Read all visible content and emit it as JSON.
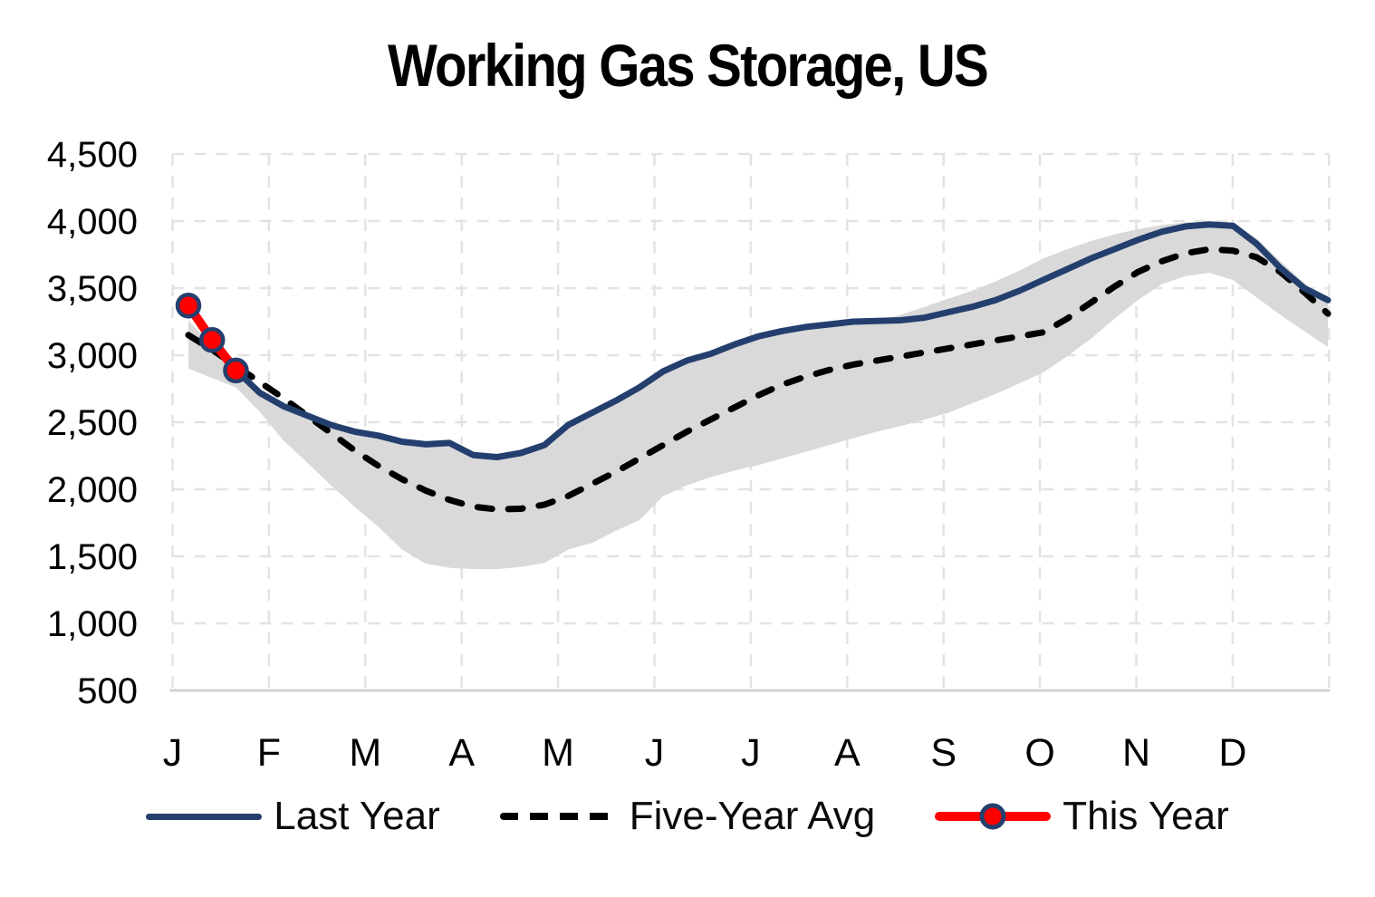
{
  "title": "Working Gas Storage, US",
  "y_axis": {
    "ticks": [
      {
        "label": "4,500",
        "value": 4500
      },
      {
        "label": "4,000",
        "value": 4000
      },
      {
        "label": "3,500",
        "value": 3500
      },
      {
        "label": "3,000",
        "value": 3000
      },
      {
        "label": "2,500",
        "value": 2500
      },
      {
        "label": "2,000",
        "value": 2000
      },
      {
        "label": "1,500",
        "value": 1500
      },
      {
        "label": "1,000",
        "value": 1000
      },
      {
        "label": "500",
        "value": 500
      }
    ]
  },
  "x_axis": {
    "months": [
      "J",
      "F",
      "M",
      "A",
      "M",
      "J",
      "J",
      "A",
      "S",
      "O",
      "N",
      "D"
    ]
  },
  "legend": {
    "items": [
      {
        "id": "last_year",
        "label": "Last Year"
      },
      {
        "id": "five_year_avg",
        "label": "Five-Year Avg"
      },
      {
        "id": "this_year",
        "label": "This Year"
      }
    ]
  },
  "colors": {
    "last_year": "#243F6E",
    "five_year_avg": "#000000",
    "this_year": "#FF0000",
    "marker_border": "#243F6E",
    "band": "#D9D9D9",
    "gridline": "#E3E3E3",
    "axis_line": "#D2D2D2",
    "text": "#000000"
  },
  "chart_data": {
    "type": "line",
    "title": "Working Gas Storage, US",
    "x_unit": "weekly values, January through December (4 points per month)",
    "categories": [
      "J",
      "F",
      "M",
      "A",
      "M",
      "J",
      "J",
      "A",
      "S",
      "O",
      "N",
      "D"
    ],
    "ylim": [
      500,
      4500
    ],
    "y_tick_step": 500,
    "grid": "dashed light-gray gridlines on both axes, solid baseline at 500",
    "legend_position": "bottom",
    "band": {
      "name": "Five-year range",
      "upper": [
        3260,
        3060,
        2870,
        2700,
        2620,
        2550,
        2480,
        2430,
        2400,
        2355,
        2335,
        2345,
        2255,
        2240,
        2270,
        2330,
        2480,
        2570,
        2660,
        2760,
        2880,
        2960,
        3010,
        3080,
        3140,
        3180,
        3210,
        3230,
        3250,
        3260,
        3300,
        3360,
        3420,
        3480,
        3550,
        3630,
        3720,
        3790,
        3850,
        3900,
        3940,
        3970,
        3990,
        3998,
        3985,
        3870,
        3700,
        3540,
        3390
      ],
      "lower": [
        2900,
        2830,
        2760,
        2580,
        2365,
        2200,
        2030,
        1870,
        1720,
        1550,
        1445,
        1415,
        1405,
        1405,
        1420,
        1450,
        1550,
        1600,
        1690,
        1770,
        1950,
        2030,
        2090,
        2140,
        2180,
        2230,
        2280,
        2330,
        2380,
        2430,
        2470,
        2520,
        2570,
        2640,
        2710,
        2790,
        2870,
        2990,
        3120,
        3270,
        3410,
        3530,
        3590,
        3615,
        3560,
        3430,
        3300,
        3180,
        3060
      ]
    },
    "series": [
      {
        "name": "Last Year",
        "style": "solid",
        "color": "#243F6E",
        "values": [
          3370,
          3110,
          2890,
          2720,
          2620,
          2550,
          2480,
          2430,
          2400,
          2355,
          2335,
          2345,
          2255,
          2240,
          2270,
          2330,
          2480,
          2570,
          2660,
          2760,
          2880,
          2960,
          3010,
          3080,
          3140,
          3180,
          3210,
          3230,
          3250,
          3255,
          3260,
          3280,
          3320,
          3360,
          3410,
          3480,
          3560,
          3640,
          3720,
          3790,
          3860,
          3920,
          3960,
          3975,
          3965,
          3830,
          3650,
          3500,
          3410
        ]
      },
      {
        "name": "Five-Year Avg",
        "style": "dashed",
        "color": "#000000",
        "values": [
          3150,
          3040,
          2920,
          2800,
          2680,
          2550,
          2420,
          2290,
          2175,
          2075,
          1990,
          1920,
          1870,
          1850,
          1855,
          1885,
          1950,
          2040,
          2130,
          2230,
          2330,
          2430,
          2520,
          2610,
          2700,
          2780,
          2840,
          2890,
          2930,
          2960,
          2990,
          3020,
          3050,
          3080,
          3110,
          3140,
          3170,
          3270,
          3390,
          3510,
          3620,
          3700,
          3760,
          3790,
          3780,
          3730,
          3620,
          3470,
          3310
        ]
      },
      {
        "name": "This Year",
        "style": "solid-with-markers",
        "color": "#FF0000",
        "marker_border": "#243F6E",
        "values": [
          3370,
          3113,
          2886
        ],
        "note": "first three weekly points of January only"
      }
    ]
  }
}
